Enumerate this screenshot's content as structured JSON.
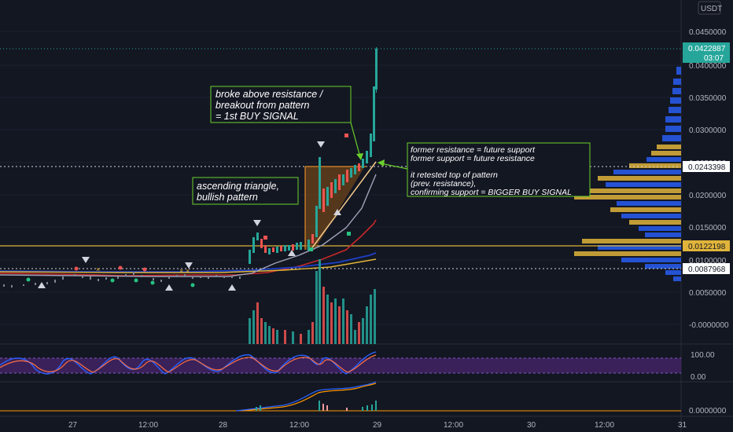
{
  "header": {
    "currency": "USDT"
  },
  "colors": {
    "background": "#131722",
    "up": "#26a69a",
    "down": "#ef5350",
    "price_tag": "#26a69a",
    "support_tag": "#e0b43a",
    "pattern_fill": "#7a4a1a",
    "annotation_border": "#6bd02c",
    "volume_profile_up": "#2962ff",
    "volume_profile_down": "#e0b43a"
  },
  "price_axis": {
    "ticks": [
      "0.0450000",
      "0.0400000",
      "0.0350000",
      "0.0300000",
      "0.0250000",
      "0.0200000",
      "0.0150000",
      "0.0100000",
      "0.0050000",
      "-0.0000000"
    ],
    "current_price": "0.0422887",
    "countdown": "03:07",
    "resistance_price": "0.0243398",
    "support_price": "0.0122198",
    "low_price": "0.0087968"
  },
  "rsi_axis": {
    "ticks": [
      "100.00",
      "0.00"
    ]
  },
  "macd_axis": {
    "ticks": [
      "0.0000000"
    ]
  },
  "time_axis": {
    "labels": [
      "27",
      "12:00",
      "28",
      "12:00",
      "29",
      "12:00",
      "30",
      "12:00",
      "31"
    ]
  },
  "annotations": {
    "breakout": [
      "broke above resistance /",
      "breakout from pattern",
      "= 1st BUY SIGNAL"
    ],
    "triangle": [
      "ascending triangle,",
      "bullish pattern"
    ],
    "retest": [
      "former resistance = future support",
      "former support = future resistance",
      "",
      "it retested top of pattern",
      "(prev. resistance),",
      "confirming support = BIGGER BUY SIGNAL"
    ]
  },
  "chart_data": [
    {
      "type": "line",
      "title": "",
      "ylabel": "USDT",
      "ylim": [
        -0.002,
        0.048
      ],
      "x": [
        "27",
        "12:00",
        "28",
        "12:00",
        "29"
      ],
      "series": [
        {
          "values": [
            0.0083,
            0.008,
            0.0085,
            0.0125,
            0.0422887
          ]
        }
      ],
      "levels": [
        0.0243398,
        0.0122198,
        0.0087968
      ]
    }
  ]
}
